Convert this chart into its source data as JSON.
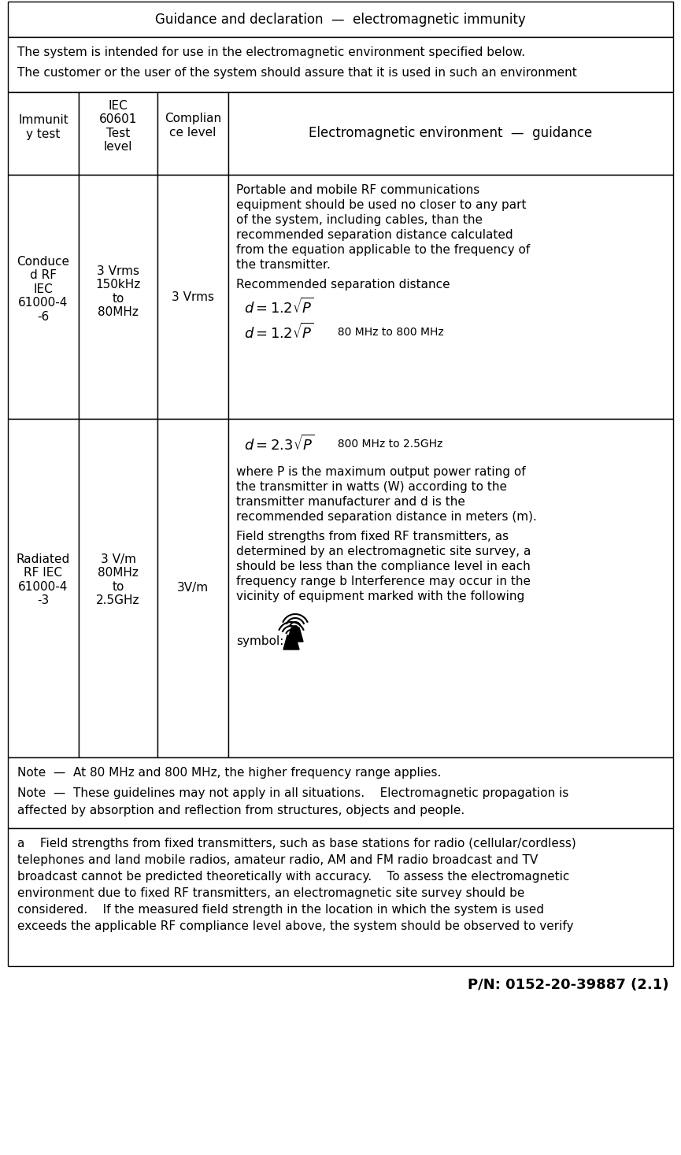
{
  "title": "Guidance and declaration  —  electromagnetic immunity",
  "intro_line1": "The system is intended for use in the electromagnetic environment specified below.",
  "intro_line2": "The customer or the user of the system should assure that it is used in such an environment",
  "header_col1": "Immunit\ny test",
  "header_col2": "IEC\n60601\nTest\nlevel",
  "header_col3": "Complian\nce level",
  "header_col4": "Electromagnetic environment  —  guidance",
  "row1_col1": "Conduce\nd RF\nIEC\n61000-4\n-6",
  "row1_col2": "3 Vrms\n150kHz\nto\n80MHz",
  "row1_col3": "3 Vrms",
  "row1_col4_para": "Portable and mobile RF communications equipment should be used no closer to any part of the system, including cables, than the recommended separation distance calculated from the equation applicable to the frequency of the transmitter.",
  "row1_col4_sep": "Recommended separation distance",
  "row2_col1": "Radiated\nRF IEC\n61000-4\n-3",
  "row2_col2": "3 V/m\n80MHz\nto\n2.5GHz",
  "row2_col3": "3V/m",
  "row2_col4_where": "where P is the maximum output power rating of the transmitter in watts (W) according to the transmitter manufacturer and d is the recommended separation distance in meters (m).",
  "row2_col4_field": "Field strengths from fixed RF transmitters, as determined by an electromagnetic site survey, a should be less than the compliance level in each frequency range b Interference may occur in the vicinity of equipment marked with the following",
  "row2_col4_symbol": "symbol:",
  "note1": "Note  —  At 80 MHz and 800 MHz, the higher frequency range applies.",
  "note2a": "Note  —  These guidelines may not apply in all situations.    Electromagnetic propagation is",
  "note2b": "affected by absorption and reflection from structures, objects and people.",
  "footnote_lines": [
    "a    Field strengths from fixed transmitters, such as base stations for radio (cellular/cordless)",
    "telephones and land mobile radios, amateur radio, AM and FM radio broadcast and TV",
    "broadcast cannot be predicted theoretically with accuracy.    To assess the electromagnetic",
    "environment due to fixed RF transmitters, an electromagnetic site survey should be",
    "considered.    If the measured field strength in the location in which the system is used",
    "exceeds the applicable RF compliance level above, the system should be observed to verify"
  ],
  "pn": "P/N: 0152-20-39887 (2.1)",
  "bg_color": "#ffffff",
  "border_color": "#000000",
  "text_color": "#000000"
}
